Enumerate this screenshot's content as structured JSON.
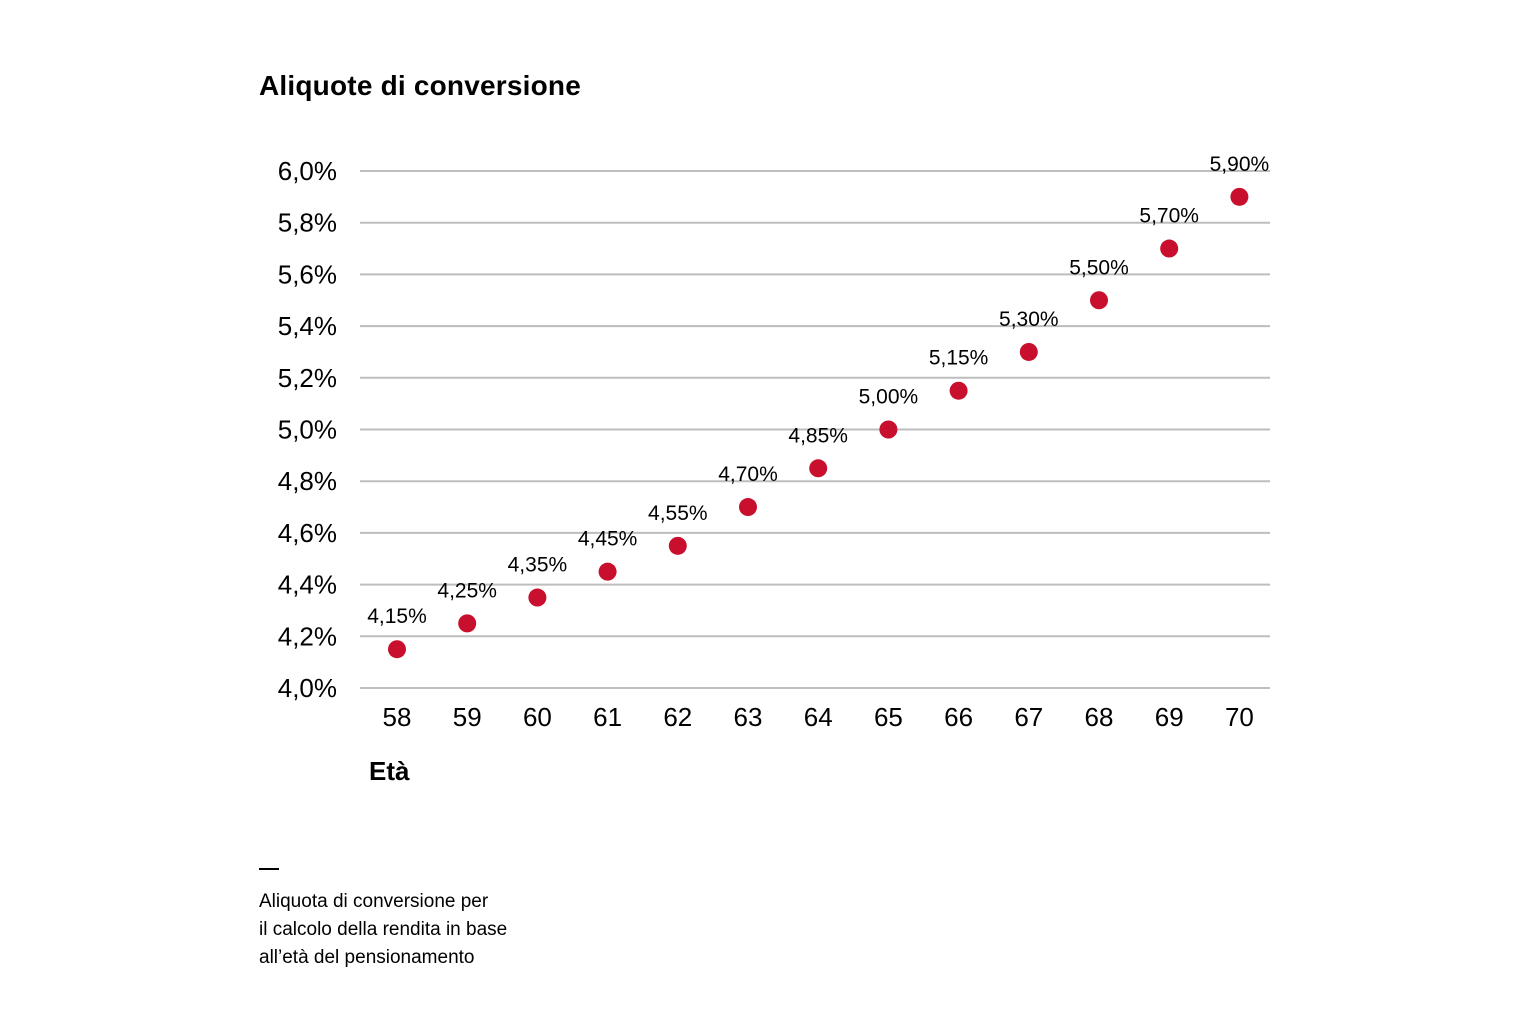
{
  "chart_data": {
    "type": "scatter",
    "title": "Aliquote di conversione",
    "xlabel": "Età",
    "ylabel": "",
    "categories": [
      "58",
      "59",
      "60",
      "61",
      "62",
      "63",
      "64",
      "65",
      "66",
      "67",
      "68",
      "69",
      "70"
    ],
    "values": [
      4.15,
      4.25,
      4.35,
      4.45,
      4.55,
      4.7,
      4.85,
      5.0,
      5.15,
      5.3,
      5.5,
      5.7,
      5.9
    ],
    "data_labels": [
      "4,15%",
      "4,25%",
      "4,35%",
      "4,45%",
      "4,55%",
      "4,70%",
      "4,85%",
      "5,00%",
      "5,15%",
      "5,30%",
      "5,50%",
      "5,70%",
      "5,90%"
    ],
    "yticks": [
      4.0,
      4.2,
      4.4,
      4.6,
      4.8,
      5.0,
      5.2,
      5.4,
      5.6,
      5.8,
      6.0
    ],
    "ytick_labels": [
      "4,0%",
      "4,2%",
      "4,4%",
      "4,6%",
      "4,8%",
      "5,0%",
      "5,2%",
      "5,4%",
      "5,6%",
      "5,8%",
      "6,0%"
    ],
    "ylim": [
      4.0,
      6.0
    ],
    "grid": true,
    "marker_color": "#c8102e",
    "grid_color": "#bdbdbd"
  },
  "footnote": {
    "lines": [
      "Aliquota di conversione per",
      "il calcolo della rendita in base",
      "all’età del pensionamento"
    ]
  }
}
